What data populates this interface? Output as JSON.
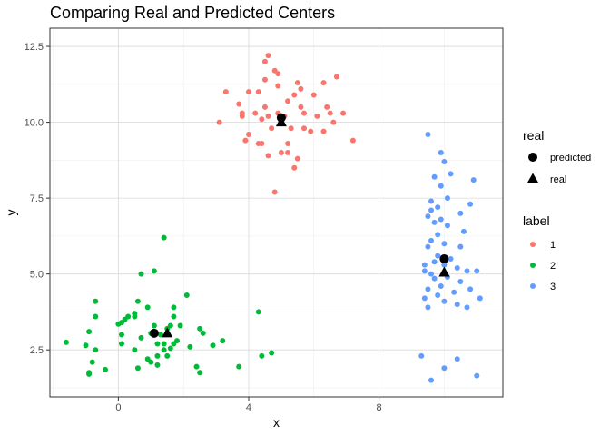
{
  "chart_data": {
    "type": "scatter",
    "title": "Comparing Real and Predicted Centers",
    "xlabel": "x",
    "ylabel": "y",
    "xlim": [
      -2.1,
      11.8
    ],
    "ylim": [
      0.95,
      13.1
    ],
    "x_ticks": [
      0,
      4,
      8
    ],
    "x_tick_labels": [
      "0",
      "4",
      "8"
    ],
    "y_ticks": [
      2.5,
      5.0,
      7.5,
      10.0,
      12.5
    ],
    "y_tick_labels": [
      "2.5",
      "5.0",
      "7.5",
      "10.0",
      "12.5"
    ],
    "grid": true,
    "colors": {
      "1": "#F8766D",
      "2": "#00BA38",
      "3": "#619CFF",
      "centers": "#000000"
    },
    "label_legend": {
      "title": "label",
      "entries": [
        {
          "label": "1",
          "color": "#F8766D"
        },
        {
          "label": "2",
          "color": "#00BA38"
        },
        {
          "label": "3",
          "color": "#619CFF"
        }
      ]
    },
    "real_legend": {
      "title": "real",
      "entries": [
        {
          "label": "predicted",
          "shape": "circle"
        },
        {
          "label": "real",
          "shape": "triangle"
        }
      ]
    },
    "series": [
      {
        "name": "1",
        "points": [
          [
            4.6,
            12.2
          ],
          [
            4.5,
            12.0
          ],
          [
            4.8,
            11.7
          ],
          [
            4.9,
            11.6
          ],
          [
            4.5,
            11.4
          ],
          [
            4.9,
            11.2
          ],
          [
            5.5,
            11.3
          ],
          [
            6.3,
            11.3
          ],
          [
            6.7,
            11.5
          ],
          [
            3.3,
            11.0
          ],
          [
            4.0,
            11.0
          ],
          [
            4.3,
            11.0
          ],
          [
            5.6,
            11.1
          ],
          [
            5.4,
            10.9
          ],
          [
            6.0,
            10.9
          ],
          [
            5.2,
            10.7
          ],
          [
            3.7,
            10.6
          ],
          [
            4.5,
            10.5
          ],
          [
            5.6,
            10.5
          ],
          [
            6.4,
            10.5
          ],
          [
            3.8,
            10.3
          ],
          [
            4.2,
            10.3
          ],
          [
            4.6,
            10.2
          ],
          [
            4.9,
            10.3
          ],
          [
            5.1,
            10.2
          ],
          [
            5.7,
            10.3
          ],
          [
            6.1,
            10.2
          ],
          [
            6.5,
            10.3
          ],
          [
            6.9,
            10.3
          ],
          [
            3.8,
            10.2
          ],
          [
            4.4,
            10.1
          ],
          [
            5.0,
            10.0
          ],
          [
            6.6,
            10.0
          ],
          [
            3.1,
            10.0
          ],
          [
            4.7,
            9.8
          ],
          [
            5.3,
            9.8
          ],
          [
            5.7,
            9.8
          ],
          [
            5.9,
            9.7
          ],
          [
            6.3,
            9.7
          ],
          [
            4.0,
            9.6
          ],
          [
            3.9,
            9.4
          ],
          [
            4.4,
            9.3
          ],
          [
            4.3,
            9.3
          ],
          [
            5.2,
            9.3
          ],
          [
            7.2,
            9.4
          ],
          [
            5.2,
            9.0
          ],
          [
            4.6,
            8.9
          ],
          [
            5.0,
            9.0
          ],
          [
            5.5,
            8.8
          ],
          [
            5.4,
            8.5
          ],
          [
            4.8,
            7.7
          ]
        ]
      },
      {
        "name": "2",
        "points": [
          [
            1.4,
            6.2
          ],
          [
            0.7,
            5.0
          ],
          [
            1.1,
            5.1
          ],
          [
            2.1,
            4.3
          ],
          [
            -0.7,
            4.1
          ],
          [
            0.6,
            4.1
          ],
          [
            0.9,
            3.9
          ],
          [
            1.7,
            3.9
          ],
          [
            0.5,
            3.7
          ],
          [
            1.7,
            3.6
          ],
          [
            -0.7,
            3.6
          ],
          [
            0.2,
            3.5
          ],
          [
            0.3,
            3.6
          ],
          [
            0.5,
            3.6
          ],
          [
            0.1,
            3.4
          ],
          [
            0.0,
            3.35
          ],
          [
            1.1,
            3.3
          ],
          [
            1.6,
            3.3
          ],
          [
            1.9,
            3.3
          ],
          [
            -0.9,
            3.1
          ],
          [
            0.1,
            3.0
          ],
          [
            1.0,
            3.05
          ],
          [
            1.3,
            3.0
          ],
          [
            1.5,
            3.2
          ],
          [
            2.5,
            3.2
          ],
          [
            2.6,
            3.05
          ],
          [
            0.7,
            2.9
          ],
          [
            1.8,
            2.8
          ],
          [
            3.2,
            2.8
          ],
          [
            -1.6,
            2.75
          ],
          [
            1.4,
            2.7
          ],
          [
            1.7,
            2.7
          ],
          [
            0.1,
            2.7
          ],
          [
            1.2,
            2.7
          ],
          [
            2.9,
            2.65
          ],
          [
            -1.0,
            2.65
          ],
          [
            0.5,
            2.5
          ],
          [
            1.6,
            2.55
          ],
          [
            2.2,
            2.6
          ],
          [
            -0.7,
            2.5
          ],
          [
            1.4,
            2.5
          ],
          [
            1.2,
            2.3
          ],
          [
            1.5,
            2.3
          ],
          [
            4.7,
            2.4
          ],
          [
            0.9,
            2.2
          ],
          [
            4.4,
            2.3
          ],
          [
            1.0,
            2.1
          ],
          [
            -0.8,
            2.1
          ],
          [
            2.4,
            1.95
          ],
          [
            3.7,
            1.95
          ],
          [
            0.6,
            1.9
          ],
          [
            -0.4,
            1.85
          ],
          [
            2.5,
            1.75
          ],
          [
            -0.9,
            1.75
          ],
          [
            -0.9,
            1.7
          ],
          [
            1.2,
            2.0
          ],
          [
            4.3,
            3.75
          ]
        ]
      },
      {
        "name": "3",
        "points": [
          [
            9.5,
            9.6
          ],
          [
            9.9,
            9.0
          ],
          [
            10.0,
            8.7
          ],
          [
            9.7,
            8.2
          ],
          [
            10.2,
            8.3
          ],
          [
            10.9,
            8.1
          ],
          [
            9.9,
            7.9
          ],
          [
            9.6,
            7.4
          ],
          [
            10.1,
            7.5
          ],
          [
            10.8,
            7.3
          ],
          [
            9.8,
            7.2
          ],
          [
            9.6,
            7.1
          ],
          [
            10.5,
            7.0
          ],
          [
            9.5,
            6.9
          ],
          [
            9.9,
            6.8
          ],
          [
            9.7,
            6.7
          ],
          [
            10.1,
            6.6
          ],
          [
            10.6,
            6.4
          ],
          [
            9.8,
            6.3
          ],
          [
            9.6,
            6.1
          ],
          [
            10.0,
            6.0
          ],
          [
            9.5,
            5.9
          ],
          [
            10.5,
            5.9
          ],
          [
            9.8,
            5.6
          ],
          [
            10.2,
            5.5
          ],
          [
            9.7,
            5.4
          ],
          [
            9.4,
            5.3
          ],
          [
            10.0,
            5.3
          ],
          [
            10.4,
            5.2
          ],
          [
            11.0,
            5.1
          ],
          [
            9.4,
            5.1
          ],
          [
            10.7,
            5.1
          ],
          [
            9.6,
            5.0
          ],
          [
            10.1,
            4.9
          ],
          [
            9.7,
            4.85
          ],
          [
            10.5,
            4.75
          ],
          [
            9.9,
            4.6
          ],
          [
            9.5,
            4.5
          ],
          [
            10.8,
            4.5
          ],
          [
            10.3,
            4.4
          ],
          [
            9.8,
            4.3
          ],
          [
            9.4,
            4.2
          ],
          [
            11.1,
            4.2
          ],
          [
            10.0,
            4.1
          ],
          [
            10.4,
            4.0
          ],
          [
            9.5,
            3.9
          ],
          [
            10.7,
            3.9
          ],
          [
            9.3,
            2.3
          ],
          [
            10.4,
            2.2
          ],
          [
            10.0,
            1.9
          ],
          [
            11.0,
            1.65
          ],
          [
            9.6,
            1.5
          ]
        ]
      }
    ],
    "centers": [
      {
        "label": "1",
        "type": "predicted",
        "x": 5.0,
        "y": 10.15
      },
      {
        "label": "1",
        "type": "real",
        "x": 5.0,
        "y": 10.0
      },
      {
        "label": "2",
        "type": "predicted",
        "x": 1.1,
        "y": 3.05
      },
      {
        "label": "2",
        "type": "real",
        "x": 1.5,
        "y": 3.05
      },
      {
        "label": "3",
        "type": "predicted",
        "x": 10.0,
        "y": 5.5
      },
      {
        "label": "3",
        "type": "real",
        "x": 10.0,
        "y": 5.05
      }
    ]
  }
}
